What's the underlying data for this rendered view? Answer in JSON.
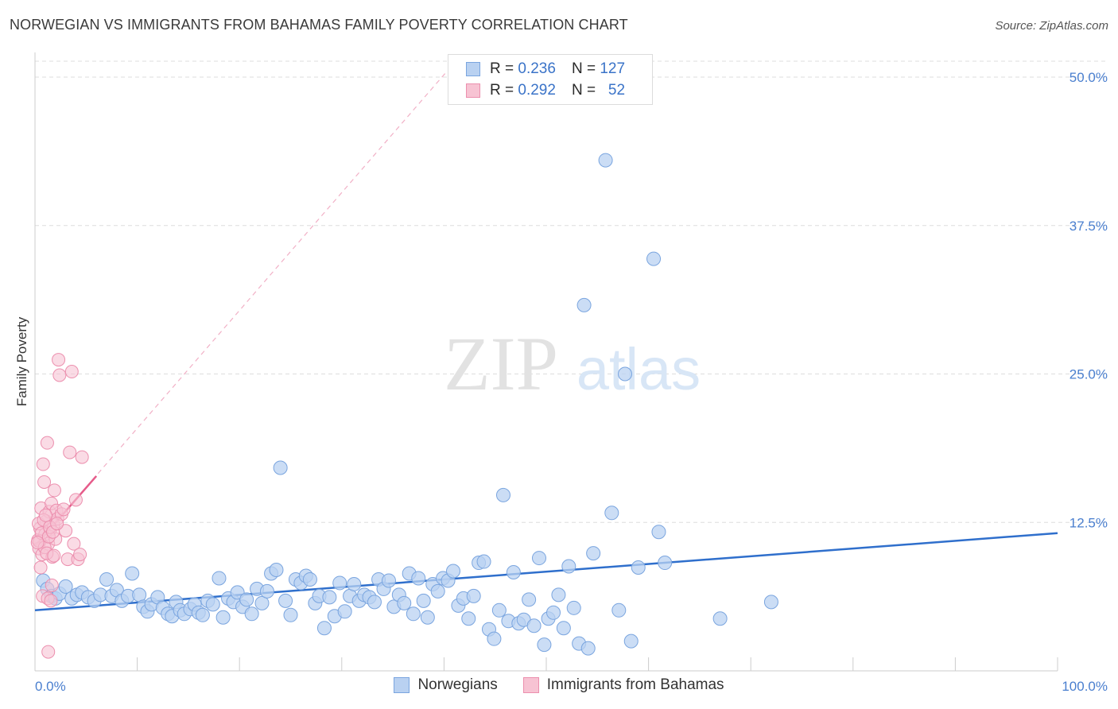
{
  "header": {
    "title": "NORWEGIAN VS IMMIGRANTS FROM BAHAMAS FAMILY POVERTY CORRELATION CHART",
    "source": "Source: ZipAtlas.com"
  },
  "legend": {
    "series1": {
      "r_label": "R =",
      "r_value": "0.236",
      "n_label": "N =",
      "n_value": "127"
    },
    "series2": {
      "r_label": "R =",
      "r_value": "0.292",
      "n_label": "N =",
      "n_value": "52"
    }
  },
  "watermark": {
    "zip": "ZIP",
    "atlas": "atlas"
  },
  "colors": {
    "blue_fill": "#b9d1f1",
    "blue_stroke": "#7aa5df",
    "blue_line": "#2f6fcc",
    "pink_fill": "#f7c3d3",
    "pink_stroke": "#ec8fae",
    "pink_line": "#e65b8a",
    "tick_text": "#4a7fcf",
    "grid": "#dddddd"
  },
  "chart_data": {
    "type": "scatter",
    "title": "NORWEGIAN VS IMMIGRANTS FROM BAHAMAS FAMILY POVERTY CORRELATION CHART",
    "xlabel": "",
    "ylabel": "Family Poverty",
    "xlim": [
      0,
      100
    ],
    "ylim": [
      0,
      52
    ],
    "x_tick_labels": [
      "0.0%",
      "100.0%"
    ],
    "y_ticks": [
      12.5,
      25.0,
      37.5,
      50.0
    ],
    "y_tick_labels": [
      "12.5%",
      "25.0%",
      "37.5%",
      "50.0%"
    ],
    "legend_position": "top-center",
    "series": [
      {
        "name": "Norwegians",
        "color": "#7aa5df",
        "trend": {
          "x": [
            0,
            100
          ],
          "y": [
            5.1,
            11.6
          ]
        },
        "points": [
          [
            0.8,
            7.6
          ],
          [
            1.2,
            6.9
          ],
          [
            1.6,
            6.3
          ],
          [
            2.0,
            6.1
          ],
          [
            2.4,
            6.5
          ],
          [
            3.0,
            7.1
          ],
          [
            3.6,
            6.1
          ],
          [
            4.1,
            6.4
          ],
          [
            4.6,
            6.6
          ],
          [
            5.2,
            6.2
          ],
          [
            5.8,
            5.9
          ],
          [
            6.4,
            6.4
          ],
          [
            7.0,
            7.7
          ],
          [
            7.5,
            6.3
          ],
          [
            8.0,
            6.8
          ],
          [
            8.5,
            5.9
          ],
          [
            9.1,
            6.3
          ],
          [
            9.5,
            8.2
          ],
          [
            10.2,
            6.4
          ],
          [
            10.6,
            5.4
          ],
          [
            11.0,
            5.0
          ],
          [
            11.4,
            5.6
          ],
          [
            12.0,
            6.2
          ],
          [
            12.5,
            5.3
          ],
          [
            13.0,
            4.8
          ],
          [
            13.4,
            4.6
          ],
          [
            13.8,
            5.8
          ],
          [
            14.2,
            5.1
          ],
          [
            14.6,
            4.8
          ],
          [
            15.2,
            5.2
          ],
          [
            15.6,
            5.6
          ],
          [
            16.0,
            4.9
          ],
          [
            16.4,
            4.7
          ],
          [
            16.9,
            5.9
          ],
          [
            17.4,
            5.6
          ],
          [
            18.0,
            7.8
          ],
          [
            18.4,
            4.5
          ],
          [
            18.9,
            6.1
          ],
          [
            19.4,
            5.8
          ],
          [
            19.8,
            6.6
          ],
          [
            20.3,
            5.4
          ],
          [
            20.7,
            6.0
          ],
          [
            21.2,
            4.8
          ],
          [
            21.7,
            6.9
          ],
          [
            22.2,
            5.7
          ],
          [
            22.7,
            6.7
          ],
          [
            23.1,
            8.2
          ],
          [
            23.6,
            8.5
          ],
          [
            24.0,
            17.1
          ],
          [
            24.5,
            5.9
          ],
          [
            25.0,
            4.7
          ],
          [
            25.5,
            7.7
          ],
          [
            26.0,
            7.4
          ],
          [
            26.5,
            8.0
          ],
          [
            26.9,
            7.7
          ],
          [
            27.4,
            5.7
          ],
          [
            27.8,
            6.3
          ],
          [
            28.3,
            3.6
          ],
          [
            28.8,
            6.2
          ],
          [
            29.3,
            4.6
          ],
          [
            29.8,
            7.4
          ],
          [
            30.3,
            5.0
          ],
          [
            30.8,
            6.3
          ],
          [
            31.2,
            7.3
          ],
          [
            31.7,
            5.9
          ],
          [
            32.2,
            6.4
          ],
          [
            32.7,
            6.2
          ],
          [
            33.2,
            5.8
          ],
          [
            33.6,
            7.7
          ],
          [
            34.1,
            6.9
          ],
          [
            34.6,
            7.6
          ],
          [
            35.1,
            5.4
          ],
          [
            35.6,
            6.4
          ],
          [
            36.1,
            5.7
          ],
          [
            36.6,
            8.2
          ],
          [
            37.0,
            4.8
          ],
          [
            37.5,
            7.8
          ],
          [
            38.0,
            5.9
          ],
          [
            38.4,
            4.5
          ],
          [
            38.9,
            7.3
          ],
          [
            39.4,
            6.7
          ],
          [
            39.9,
            7.8
          ],
          [
            40.4,
            7.6
          ],
          [
            40.9,
            8.4
          ],
          [
            41.4,
            5.5
          ],
          [
            41.9,
            6.1
          ],
          [
            42.4,
            4.4
          ],
          [
            42.9,
            6.3
          ],
          [
            43.4,
            9.1
          ],
          [
            43.9,
            9.2
          ],
          [
            44.4,
            3.5
          ],
          [
            44.9,
            2.7
          ],
          [
            45.4,
            5.1
          ],
          [
            45.8,
            14.8
          ],
          [
            46.3,
            4.2
          ],
          [
            46.8,
            8.3
          ],
          [
            47.3,
            4.0
          ],
          [
            47.8,
            4.3
          ],
          [
            48.3,
            6.0
          ],
          [
            48.8,
            3.8
          ],
          [
            49.3,
            9.5
          ],
          [
            49.8,
            2.2
          ],
          [
            50.2,
            4.4
          ],
          [
            50.7,
            4.9
          ],
          [
            51.2,
            6.4
          ],
          [
            51.7,
            3.6
          ],
          [
            52.2,
            8.8
          ],
          [
            52.7,
            5.3
          ],
          [
            53.2,
            2.3
          ],
          [
            53.7,
            30.8
          ],
          [
            54.1,
            1.9
          ],
          [
            54.6,
            9.9
          ],
          [
            55.8,
            43.0
          ],
          [
            56.4,
            13.3
          ],
          [
            57.1,
            5.1
          ],
          [
            57.7,
            25.0
          ],
          [
            58.3,
            2.5
          ],
          [
            59.0,
            8.7
          ],
          [
            60.5,
            34.7
          ],
          [
            61.0,
            11.7
          ],
          [
            61.6,
            9.1
          ],
          [
            67.0,
            4.4
          ],
          [
            72.0,
            5.8
          ]
        ]
      },
      {
        "name": "Immigrants from Bahamas",
        "color": "#ec8fae",
        "trend": {
          "x": [
            0,
            6
          ],
          "y": [
            10.5,
            16.4
          ]
        },
        "trend_extended": {
          "x": [
            0,
            40.3
          ],
          "y": [
            10.5,
            50.5
          ]
        },
        "points": [
          [
            0.3,
            11.0
          ],
          [
            0.4,
            10.3
          ],
          [
            0.5,
            12.0
          ],
          [
            0.6,
            13.7
          ],
          [
            0.7,
            9.8
          ],
          [
            0.8,
            17.4
          ],
          [
            0.9,
            15.9
          ],
          [
            1.0,
            11.5
          ],
          [
            1.1,
            12.6
          ],
          [
            1.2,
            19.2
          ],
          [
            1.3,
            10.7
          ],
          [
            1.4,
            13.4
          ],
          [
            1.5,
            11.9
          ],
          [
            1.6,
            14.1
          ],
          [
            1.7,
            9.6
          ],
          [
            1.8,
            12.3
          ],
          [
            1.9,
            15.2
          ],
          [
            2.0,
            11.1
          ],
          [
            2.1,
            13.5
          ],
          [
            2.2,
            12.8
          ],
          [
            2.3,
            26.2
          ],
          [
            2.4,
            24.9
          ],
          [
            2.6,
            13.2
          ],
          [
            2.8,
            13.6
          ],
          [
            3.0,
            11.8
          ],
          [
            3.2,
            9.4
          ],
          [
            3.4,
            18.4
          ],
          [
            3.6,
            25.2
          ],
          [
            3.8,
            10.7
          ],
          [
            4.0,
            14.4
          ],
          [
            4.2,
            9.4
          ],
          [
            4.4,
            9.8
          ],
          [
            4.6,
            18.0
          ],
          [
            0.35,
            12.4
          ],
          [
            0.45,
            10.9
          ],
          [
            0.55,
            8.7
          ],
          [
            0.65,
            11.6
          ],
          [
            0.75,
            6.3
          ],
          [
            0.85,
            12.7
          ],
          [
            0.95,
            10.4
          ],
          [
            1.05,
            13.1
          ],
          [
            1.15,
            9.9
          ],
          [
            1.25,
            6.1
          ],
          [
            1.35,
            11.3
          ],
          [
            1.45,
            12.1
          ],
          [
            1.55,
            5.9
          ],
          [
            1.65,
            7.2
          ],
          [
            1.75,
            11.7
          ],
          [
            1.85,
            9.7
          ],
          [
            1.3,
            1.6
          ],
          [
            2.15,
            12.4
          ],
          [
            0.25,
            10.8
          ]
        ]
      }
    ]
  },
  "bottom_legend": {
    "items": [
      "Norwegians",
      "Immigrants from Bahamas"
    ]
  }
}
